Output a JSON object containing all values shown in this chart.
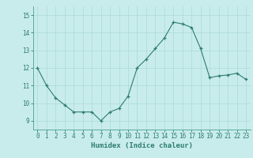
{
  "x": [
    0,
    1,
    2,
    3,
    4,
    5,
    6,
    7,
    8,
    9,
    10,
    11,
    12,
    13,
    14,
    15,
    16,
    17,
    18,
    19,
    20,
    21,
    22,
    23
  ],
  "y": [
    12.0,
    11.0,
    10.3,
    9.9,
    9.5,
    9.5,
    9.5,
    9.0,
    9.5,
    9.7,
    10.4,
    12.0,
    12.5,
    13.1,
    13.7,
    14.6,
    14.5,
    14.3,
    13.1,
    11.45,
    11.55,
    11.6,
    11.7,
    11.35
  ],
  "xlabel": "Humidex (Indice chaleur)",
  "ylim": [
    8.5,
    15.5
  ],
  "xlim": [
    -0.5,
    23.5
  ],
  "yticks": [
    9,
    10,
    11,
    12,
    13,
    14,
    15
  ],
  "xticks": [
    0,
    1,
    2,
    3,
    4,
    5,
    6,
    7,
    8,
    9,
    10,
    11,
    12,
    13,
    14,
    15,
    16,
    17,
    18,
    19,
    20,
    21,
    22,
    23
  ],
  "line_color": "#2e7d6e",
  "marker_color": "#2e7d6e",
  "bg_color": "#c8ecec",
  "grid_color": "#aed8d8",
  "axis_color": "#5aaa96",
  "tick_color": "#2e7d6e",
  "label_color": "#2e7d6e",
  "font_size_label": 6.5,
  "font_size_tick": 5.5
}
